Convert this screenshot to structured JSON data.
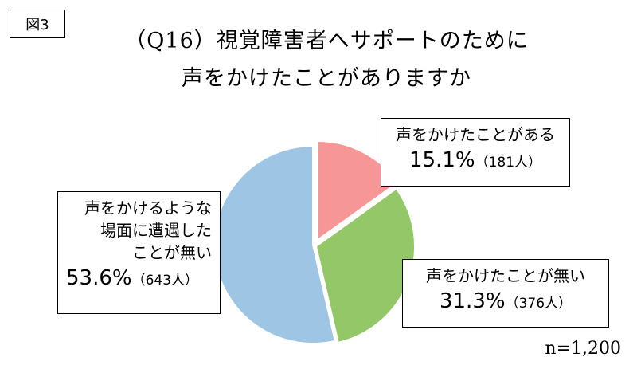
{
  "figure_label": "図3",
  "title_line1": "（Q16）視覚障害者へサポートのために",
  "title_line2": "声をかけたことがありますか",
  "sample_size": "n=1,200",
  "chart_data": {
    "type": "pie",
    "title": "（Q16）視覚障害者へサポートのために声をかけたことがありますか",
    "categories": [
      "声をかけたことがある",
      "声をかけたことが無い",
      "声をかけるような場面に遭遇したことが無い"
    ],
    "values": [
      15.1,
      31.3,
      53.6
    ],
    "counts": [
      181,
      376,
      643
    ],
    "colors": [
      "#f79696",
      "#94c768",
      "#9fc5e5"
    ],
    "start_angle": "12 o'clock, clockwise",
    "labels": [
      {
        "lines": [
          "声をかけたことがある"
        ],
        "percent": "15.1%",
        "count": "（181人）"
      },
      {
        "lines": [
          "声をかけたことが無い"
        ],
        "percent": "31.3%",
        "count": "（376人）"
      },
      {
        "lines": [
          "声をかけるような",
          "場面に遭遇した",
          "ことが無い"
        ],
        "percent": "53.6%",
        "count": "（643人）"
      }
    ]
  }
}
